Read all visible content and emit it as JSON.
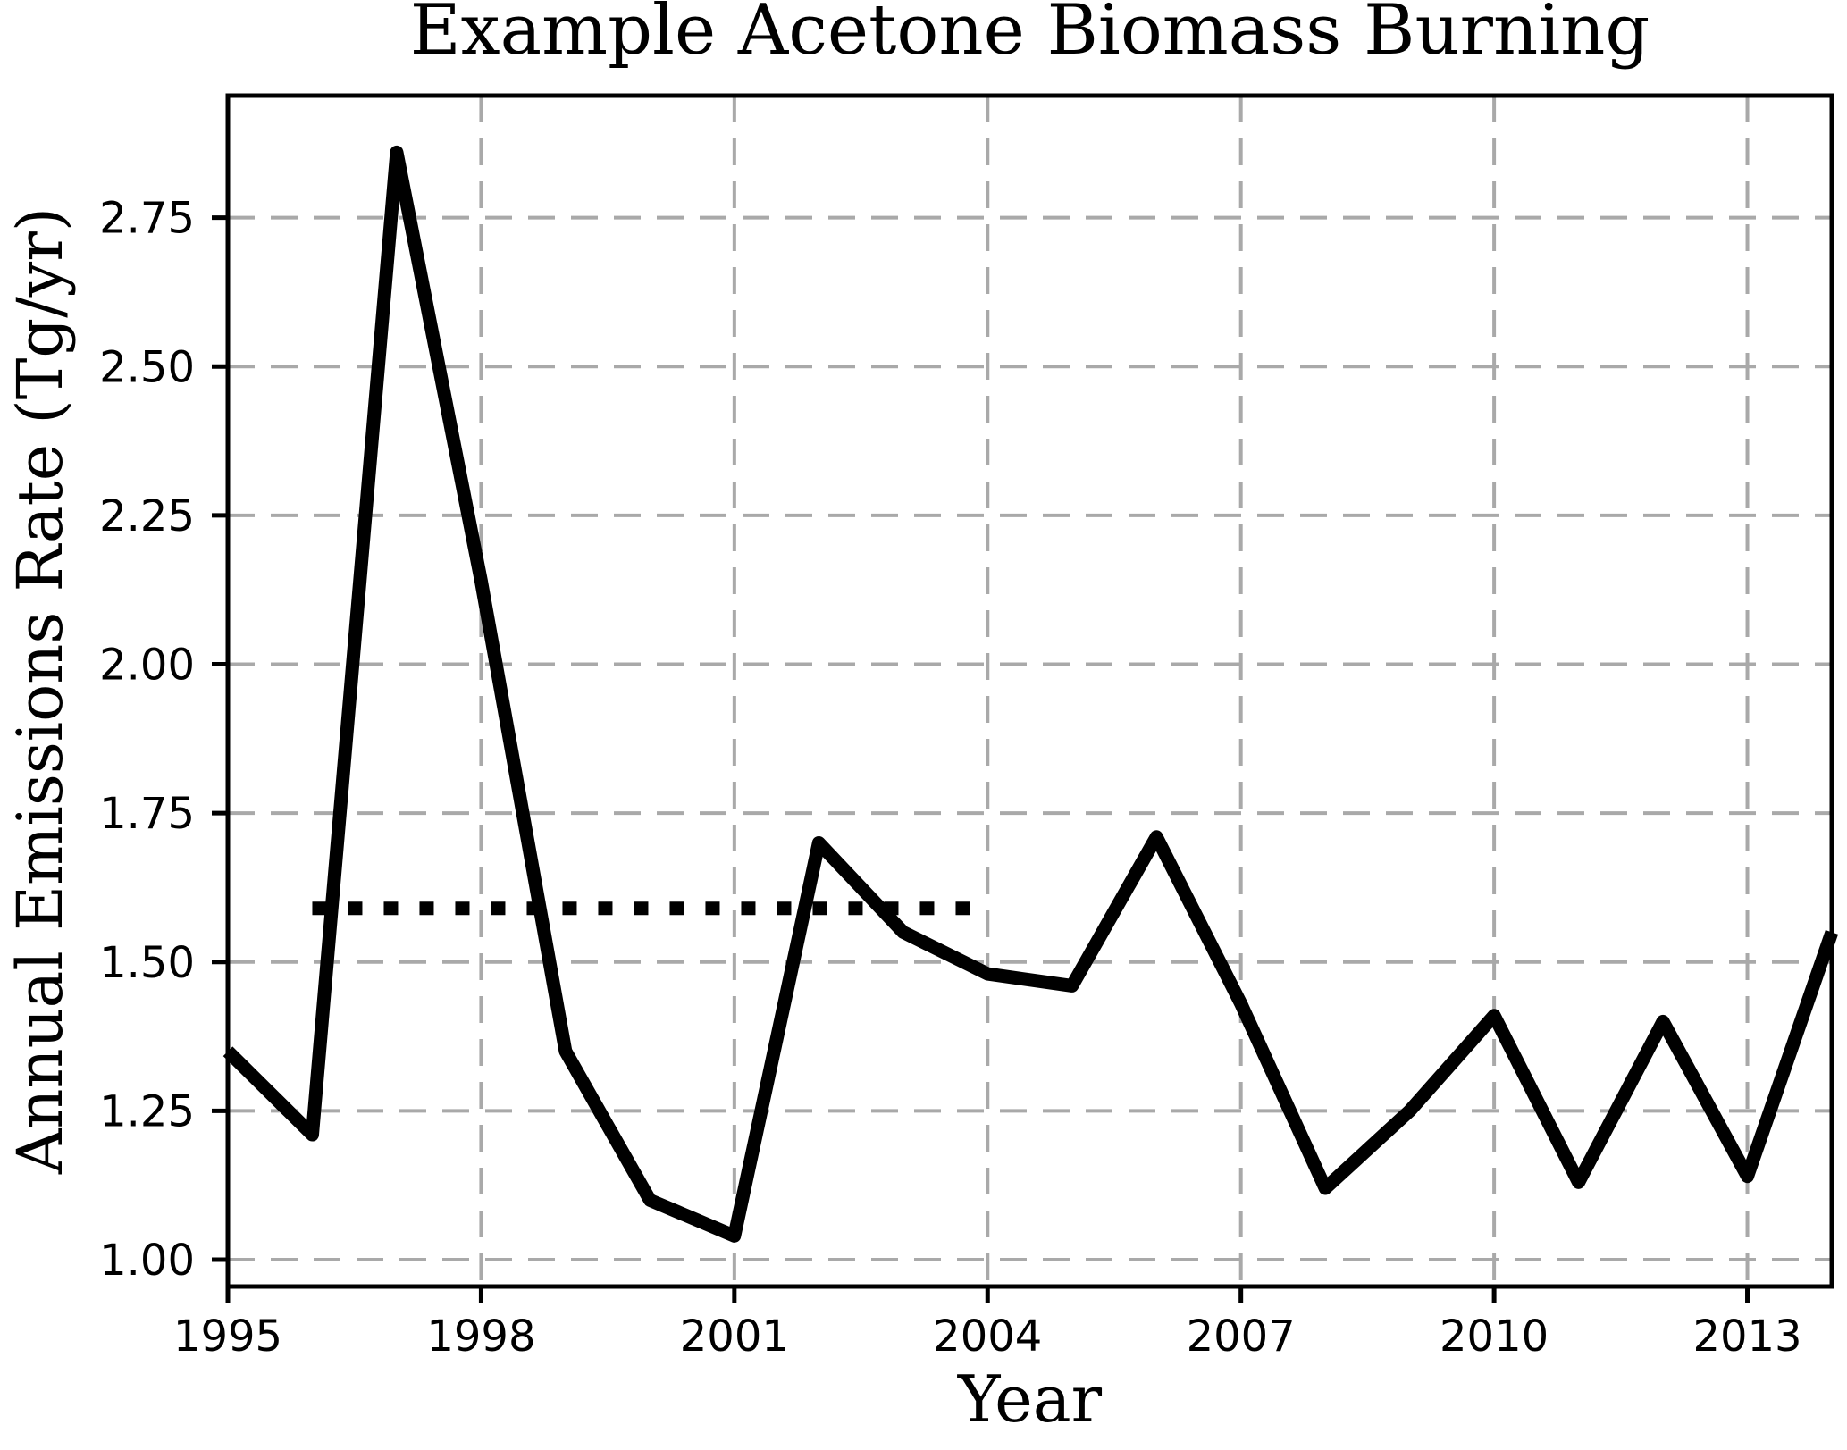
{
  "chart_data": {
    "type": "line",
    "title": "Example Acetone Biomass Burning",
    "xlabel": "Year",
    "ylabel": "Annual Emissions Rate (Tg/yr)",
    "xlim": [
      1995,
      2014
    ],
    "ylim": [
      0.955,
      2.955
    ],
    "grid": true,
    "grid_color": "#a9a9a9",
    "axis_color": "#000000",
    "background_color": "#ffffff",
    "legend": "none",
    "xticks": {
      "values": [
        1995,
        1998,
        2001,
        2004,
        2007,
        2010,
        2013
      ],
      "labels": [
        "1995",
        "1998",
        "2001",
        "2004",
        "2007",
        "2010",
        "2013"
      ]
    },
    "yticks": {
      "values": [
        1.0,
        1.25,
        1.5,
        1.75,
        2.0,
        2.25,
        2.5,
        2.75
      ],
      "labels": [
        "1.00",
        "1.25",
        "1.50",
        "1.75",
        "2.00",
        "2.25",
        "2.50",
        "2.75"
      ]
    },
    "series": [
      {
        "name": "annual_emissions_rate",
        "linestyle": "solid",
        "color": "#000000",
        "linewidth": 15,
        "x": [
          1995,
          1996,
          1997,
          1998,
          1999,
          2000,
          2001,
          2002,
          2003,
          2004,
          2005,
          2006,
          2007,
          2008,
          2009,
          2010,
          2011,
          2012,
          2013,
          2014
        ],
        "y": [
          1.35,
          1.21,
          2.86,
          2.14,
          1.35,
          1.1,
          1.04,
          1.7,
          1.55,
          1.48,
          1.46,
          1.71,
          1.43,
          1.12,
          1.25,
          1.41,
          1.13,
          1.4,
          1.14,
          1.55
        ]
      },
      {
        "name": "reference_mean_level",
        "linestyle": "dotted",
        "color": "#000000",
        "linewidth": 15,
        "x": [
          1996,
          2004
        ],
        "y": [
          1.59,
          1.59
        ]
      }
    ]
  }
}
